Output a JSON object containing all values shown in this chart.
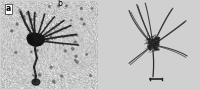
{
  "background_color": "#d0d0d0",
  "panel_a": {
    "label": "a",
    "bg_color_mean": 0.78,
    "bg_color_std": 0.06,
    "border_color": "#888888"
  },
  "panel_b": {
    "label": "b",
    "bg_color": "#f0f0f0"
  },
  "fig_width": 2.0,
  "fig_height": 0.9,
  "dpi": 100
}
